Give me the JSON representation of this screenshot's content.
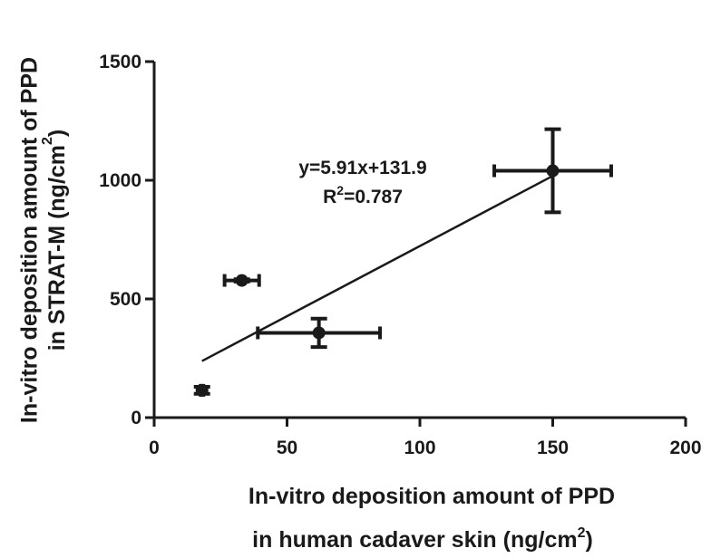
{
  "chart_data": {
    "type": "scatter",
    "title": "",
    "xlabel_line1": "In-vitro deposition amount of PPD",
    "xlabel_line2_prefix": "in human cadaver skin (ng/cm",
    "xlabel_line2_sup": "2",
    "xlabel_line2_suffix": ")",
    "ylabel_line1": "In-vitro deposition amount of PPD",
    "ylabel_line2_prefix": "in STRAT-M (ng/cm",
    "ylabel_line2_sup": "2",
    "ylabel_line2_suffix": ")",
    "xlim": [
      0,
      200
    ],
    "ylim": [
      0,
      1500
    ],
    "x_ticks": [
      0,
      50,
      100,
      150,
      200
    ],
    "y_ticks": [
      0,
      500,
      1000,
      1500
    ],
    "grid": false,
    "points": [
      {
        "x": 18,
        "y": 115,
        "x_err": 0.5,
        "y_err": 15
      },
      {
        "x": 33,
        "y": 578,
        "x_err": 6.5,
        "y_err": 5
      },
      {
        "x": 62,
        "y": 357,
        "x_err": 23,
        "y_err": 60
      },
      {
        "x": 150,
        "y": 1040,
        "x_err": 22,
        "y_err": 175
      }
    ],
    "fit": {
      "slope": 5.91,
      "intercept": 131.9,
      "x_range": [
        18,
        150
      ]
    },
    "equation_text": "y=5.91x+131.9",
    "r2_prefix": "R",
    "r2_sup": "2",
    "r2_suffix": "=0.787"
  }
}
